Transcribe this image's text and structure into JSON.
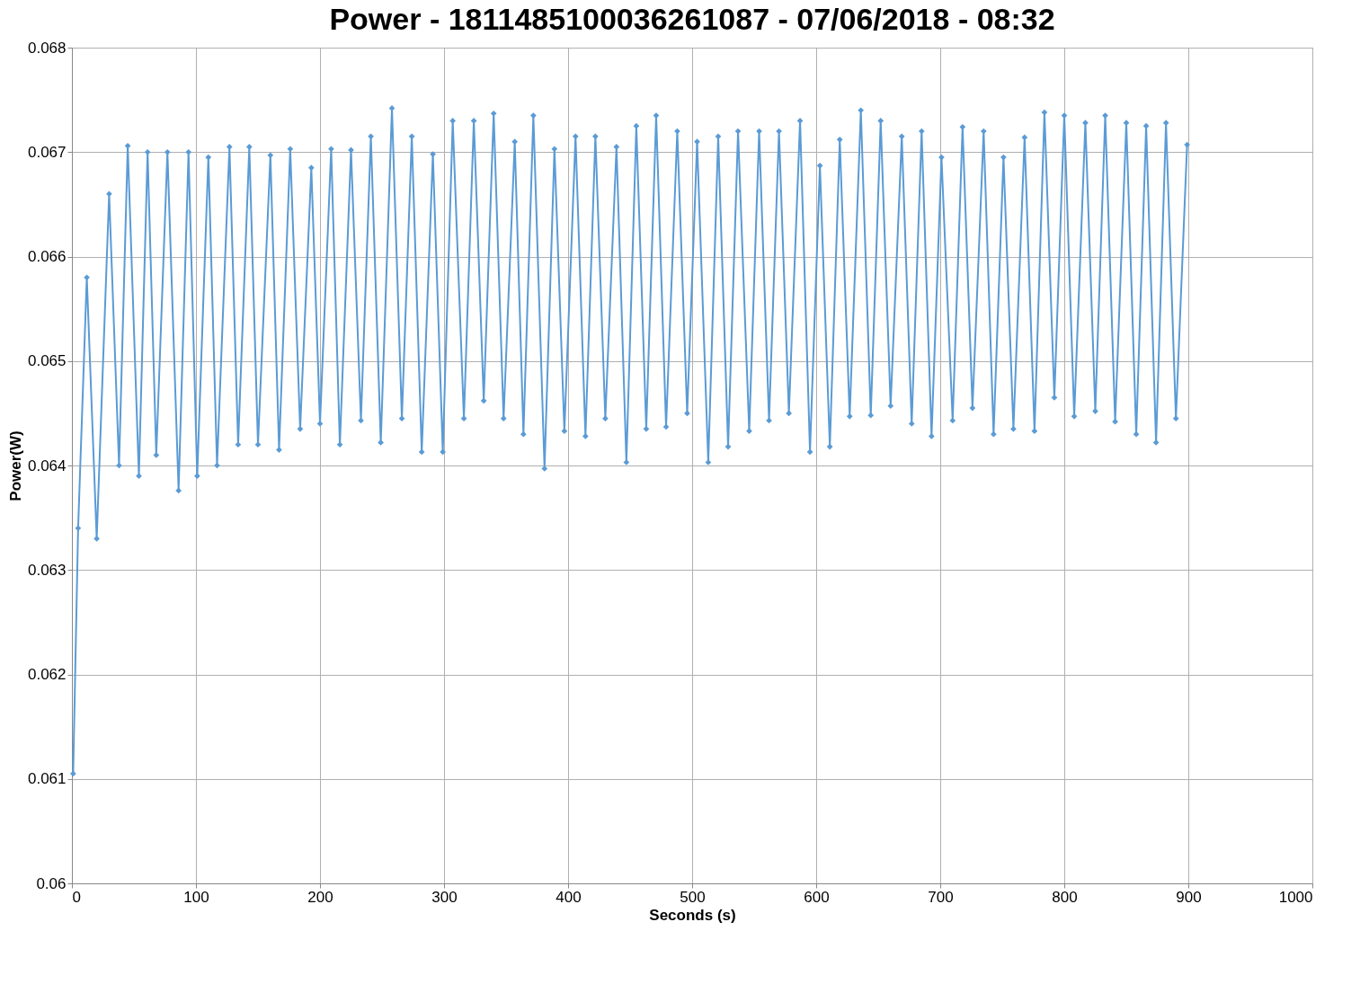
{
  "chart_data": {
    "type": "line",
    "title": "Power - 1811485100036261087 - 07/06/2018 - 08:32",
    "xlabel": "Seconds (s)",
    "ylabel": "Power(W)",
    "xlim": [
      0,
      1000
    ],
    "xticks": [
      0,
      100,
      200,
      300,
      400,
      500,
      600,
      700,
      800,
      900,
      1000
    ],
    "ylim": [
      0.06,
      0.068
    ],
    "yticks": [
      0.06,
      0.061,
      0.062,
      0.063,
      0.064,
      0.065,
      0.066,
      0.067,
      0.068
    ],
    "grid": true,
    "marker": "diamond",
    "line_style": "solid",
    "series": [
      {
        "color": "#5b9bd5",
        "x": [
          1,
          5,
          12,
          20,
          30,
          38,
          45,
          54,
          61,
          68,
          77,
          86,
          94,
          101,
          110,
          117,
          127,
          134,
          143,
          150,
          160,
          167,
          176,
          184,
          193,
          200,
          209,
          216,
          225,
          233,
          241,
          249,
          258,
          266,
          274,
          282,
          291,
          299,
          307,
          316,
          324,
          332,
          340,
          348,
          357,
          364,
          372,
          381,
          389,
          397,
          406,
          414,
          422,
          430,
          439,
          447,
          455,
          463,
          471,
          479,
          488,
          496,
          504,
          513,
          521,
          529,
          537,
          546,
          554,
          562,
          570,
          578,
          587,
          595,
          603,
          611,
          619,
          627,
          636,
          644,
          652,
          660,
          669,
          677,
          685,
          693,
          701,
          710,
          718,
          726,
          735,
          743,
          751,
          759,
          768,
          776,
          784,
          792,
          800,
          808,
          817,
          825,
          833,
          841,
          850,
          858,
          866,
          874,
          882,
          890,
          899
        ],
        "values": [
          0.06105,
          0.0634,
          0.0658,
          0.0633,
          0.0666,
          0.064,
          0.06706,
          0.0639,
          0.067,
          0.0641,
          0.067,
          0.06376,
          0.067,
          0.0639,
          0.06695,
          0.064,
          0.06705,
          0.0642,
          0.06705,
          0.0642,
          0.06697,
          0.06415,
          0.06703,
          0.06435,
          0.06685,
          0.0644,
          0.06703,
          0.0642,
          0.06702,
          0.06443,
          0.06715,
          0.06422,
          0.06742,
          0.06445,
          0.06715,
          0.06413,
          0.06698,
          0.06413,
          0.0673,
          0.06445,
          0.0673,
          0.06462,
          0.06737,
          0.06445,
          0.0671,
          0.0643,
          0.06735,
          0.06397,
          0.06703,
          0.06433,
          0.06715,
          0.06428,
          0.06715,
          0.06445,
          0.06705,
          0.06403,
          0.06725,
          0.06435,
          0.06735,
          0.06437,
          0.0672,
          0.0645,
          0.0671,
          0.06403,
          0.06715,
          0.06418,
          0.0672,
          0.06433,
          0.0672,
          0.06443,
          0.0672,
          0.0645,
          0.0673,
          0.06413,
          0.06687,
          0.06418,
          0.06712,
          0.06447,
          0.0674,
          0.06448,
          0.0673,
          0.06457,
          0.06715,
          0.0644,
          0.0672,
          0.06428,
          0.06695,
          0.06443,
          0.06724,
          0.06455,
          0.0672,
          0.0643,
          0.06695,
          0.06435,
          0.06714,
          0.06433,
          0.06738,
          0.06465,
          0.06735,
          0.06447,
          0.06728,
          0.06452,
          0.06735,
          0.06442,
          0.06728,
          0.0643,
          0.06725,
          0.06422,
          0.06728,
          0.06445,
          0.06707
        ]
      }
    ]
  }
}
